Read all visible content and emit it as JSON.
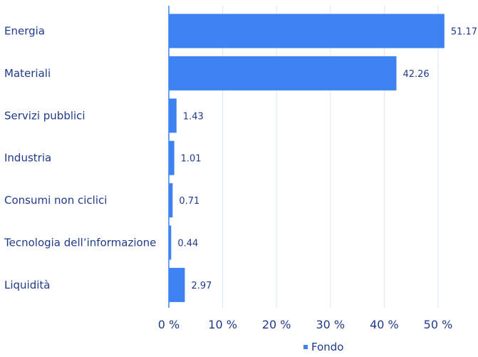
{
  "chart_data": {
    "type": "bar",
    "orientation": "horizontal",
    "categories": [
      "Energia",
      "Materiali",
      "Servizi pubblici",
      "Industria",
      "Consumi non ciclici",
      "Tecnologia dell’informazione",
      "Liquidità"
    ],
    "series": [
      {
        "name": "Fondo",
        "values": [
          51.17,
          42.26,
          1.43,
          1.01,
          0.71,
          0.44,
          2.97
        ],
        "value_labels": [
          "51.17",
          "42.26",
          "1.43",
          "1.01",
          "0.71",
          "0.44",
          "2.97"
        ]
      }
    ],
    "xlim": [
      0,
      50
    ],
    "xticks": [
      0,
      10,
      20,
      30,
      40,
      50
    ],
    "xtick_labels": [
      "0 %",
      "10 %",
      "20 %",
      "30 %",
      "40 %",
      "50 %"
    ],
    "grid": true,
    "legend_position": "bottom-center",
    "colors": {
      "bar": "#3d82f0",
      "text": "#1f3a8a",
      "grid": "#dbe6f2",
      "axis": "#3d82f0"
    }
  }
}
